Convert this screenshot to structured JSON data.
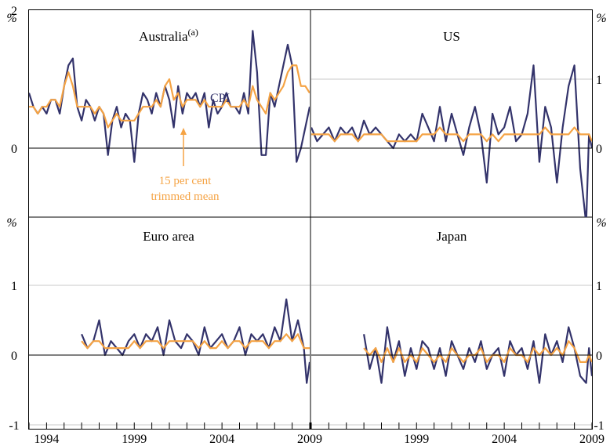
{
  "colors": {
    "cpi": "#33336b",
    "trimmed_mean": "#f5a344",
    "grid": "#c8c8c8",
    "axis": "#000000"
  },
  "chart_data": [
    {
      "type": "line",
      "title": "Australia",
      "title_superscript": "(a)",
      "unit": "%",
      "ylim": [
        -1,
        3
      ],
      "yticks": [
        "2",
        "0"
      ],
      "ytick_values": [
        2,
        0
      ],
      "grid": true,
      "annotations": {
        "cpi": "CPI",
        "trimmed_mean_line1": "15 per cent",
        "trimmed_mean_line2": "trimmed mean"
      },
      "series": [
        {
          "key": "cpi",
          "x": [
            1993.0,
            1993.25,
            1993.5,
            1993.75,
            1994.0,
            1994.25,
            1994.5,
            1994.75,
            1995.0,
            1995.25,
            1995.5,
            1995.75,
            1996.0,
            1996.25,
            1996.5,
            1996.75,
            1997.0,
            1997.25,
            1997.5,
            1997.75,
            1998.0,
            1998.25,
            1998.5,
            1998.75,
            1999.0,
            1999.25,
            1999.5,
            1999.75,
            2000.0,
            2000.25,
            2000.5,
            2000.75,
            2001.0,
            2001.25,
            2001.5,
            2001.75,
            2002.0,
            2002.25,
            2002.5,
            2002.75,
            2003.0,
            2003.25,
            2003.5,
            2003.75,
            2004.0,
            2004.25,
            2004.5,
            2004.75,
            2005.0,
            2005.25,
            2005.5,
            2005.75,
            2006.0,
            2006.25,
            2006.5,
            2006.75,
            2007.0,
            2007.25,
            2007.5,
            2007.75,
            2008.0,
            2008.25,
            2008.5,
            2008.75,
            2009.0
          ],
          "values": [
            0.8,
            0.6,
            0.5,
            0.6,
            0.5,
            0.7,
            0.7,
            0.5,
            0.9,
            1.2,
            1.3,
            0.6,
            0.4,
            0.7,
            0.6,
            0.4,
            0.6,
            0.5,
            -0.1,
            0.4,
            0.6,
            0.3,
            0.5,
            0.4,
            -0.2,
            0.5,
            0.8,
            0.7,
            0.5,
            0.8,
            0.6,
            0.9,
            0.7,
            0.3,
            0.9,
            0.5,
            0.8,
            0.7,
            0.8,
            0.6,
            0.8,
            0.3,
            0.7,
            0.5,
            0.6,
            0.8,
            0.6,
            0.6,
            0.5,
            0.8,
            0.5,
            1.7,
            1.1,
            -0.1,
            -0.1,
            0.8,
            0.6,
            0.9,
            1.2,
            1.5,
            1.2,
            -0.2,
            0.0,
            0.3,
            0.6
          ]
        },
        {
          "key": "trimmed_mean",
          "x": [
            1993.0,
            1993.25,
            1993.5,
            1993.75,
            1994.0,
            1994.25,
            1994.5,
            1994.75,
            1995.0,
            1995.25,
            1995.5,
            1995.75,
            1996.0,
            1996.25,
            1996.5,
            1996.75,
            1997.0,
            1997.25,
            1997.5,
            1997.75,
            1998.0,
            1998.25,
            1998.5,
            1998.75,
            1999.0,
            1999.25,
            1999.5,
            1999.75,
            2000.0,
            2000.25,
            2000.5,
            2000.75,
            2001.0,
            2001.25,
            2001.5,
            2001.75,
            2002.0,
            2002.25,
            2002.5,
            2002.75,
            2003.0,
            2003.25,
            2003.5,
            2003.75,
            2004.0,
            2004.25,
            2004.5,
            2004.75,
            2005.0,
            2005.25,
            2005.5,
            2005.75,
            2006.0,
            2006.25,
            2006.5,
            2006.75,
            2007.0,
            2007.25,
            2007.5,
            2007.75,
            2008.0,
            2008.25,
            2008.5,
            2008.75,
            2009.0
          ],
          "values": [
            0.6,
            0.6,
            0.5,
            0.6,
            0.6,
            0.7,
            0.7,
            0.6,
            0.9,
            1.1,
            0.9,
            0.6,
            0.6,
            0.6,
            0.6,
            0.5,
            0.6,
            0.5,
            0.3,
            0.4,
            0.5,
            0.4,
            0.4,
            0.4,
            0.4,
            0.5,
            0.6,
            0.6,
            0.6,
            0.7,
            0.6,
            0.9,
            1.0,
            0.7,
            0.8,
            0.6,
            0.7,
            0.7,
            0.7,
            0.6,
            0.7,
            0.6,
            0.6,
            0.6,
            0.6,
            0.7,
            0.6,
            0.6,
            0.6,
            0.7,
            0.6,
            0.9,
            0.7,
            0.6,
            0.5,
            0.8,
            0.7,
            0.8,
            0.9,
            1.1,
            1.2,
            1.2,
            0.9,
            0.9,
            0.8
          ]
        }
      ]
    },
    {
      "type": "line",
      "title": "US",
      "unit": "%",
      "ylim": [
        -1,
        1.5
      ],
      "yticks": [
        "1",
        "0"
      ],
      "ytick_values": [
        1,
        0
      ],
      "grid": true,
      "series": [
        {
          "key": "cpi",
          "x": [
            1993.0,
            1993.33,
            1993.67,
            1994.0,
            1994.33,
            1994.67,
            1995.0,
            1995.33,
            1995.67,
            1996.0,
            1996.33,
            1996.67,
            1997.0,
            1997.33,
            1997.67,
            1998.0,
            1998.33,
            1998.67,
            1999.0,
            1999.33,
            1999.67,
            2000.0,
            2000.33,
            2000.67,
            2001.0,
            2001.33,
            2001.67,
            2002.0,
            2002.33,
            2002.67,
            2003.0,
            2003.33,
            2003.67,
            2004.0,
            2004.33,
            2004.67,
            2005.0,
            2005.33,
            2005.67,
            2006.0,
            2006.33,
            2006.67,
            2007.0,
            2007.33,
            2007.67,
            2008.0,
            2008.33,
            2008.67,
            2008.83,
            2009.0
          ],
          "values": [
            0.3,
            0.1,
            0.2,
            0.3,
            0.1,
            0.3,
            0.2,
            0.3,
            0.1,
            0.4,
            0.2,
            0.3,
            0.2,
            0.1,
            0.0,
            0.2,
            0.1,
            0.2,
            0.1,
            0.5,
            0.3,
            0.1,
            0.6,
            0.1,
            0.5,
            0.2,
            -0.1,
            0.3,
            0.6,
            0.2,
            -0.5,
            0.5,
            0.2,
            0.3,
            0.6,
            0.1,
            0.2,
            0.5,
            1.2,
            -0.2,
            0.6,
            0.3,
            -0.5,
            0.3,
            0.9,
            1.2,
            -0.3,
            -1.1,
            0.2,
            0.0
          ]
        },
        {
          "key": "trimmed_mean",
          "x": [
            1993.0,
            1993.33,
            1993.67,
            1994.0,
            1994.33,
            1994.67,
            1995.0,
            1995.33,
            1995.67,
            1996.0,
            1996.33,
            1996.67,
            1997.0,
            1997.33,
            1997.67,
            1998.0,
            1998.33,
            1998.67,
            1999.0,
            1999.33,
            1999.67,
            2000.0,
            2000.33,
            2000.67,
            2001.0,
            2001.33,
            2001.67,
            2002.0,
            2002.33,
            2002.67,
            2003.0,
            2003.33,
            2003.67,
            2004.0,
            2004.33,
            2004.67,
            2005.0,
            2005.33,
            2005.67,
            2006.0,
            2006.33,
            2006.67,
            2007.0,
            2007.33,
            2007.67,
            2008.0,
            2008.33,
            2008.67,
            2008.83,
            2009.0
          ],
          "values": [
            0.2,
            0.2,
            0.2,
            0.2,
            0.1,
            0.2,
            0.2,
            0.2,
            0.1,
            0.2,
            0.2,
            0.2,
            0.2,
            0.1,
            0.1,
            0.1,
            0.1,
            0.1,
            0.1,
            0.2,
            0.2,
            0.2,
            0.3,
            0.2,
            0.2,
            0.2,
            0.1,
            0.2,
            0.2,
            0.2,
            0.1,
            0.2,
            0.1,
            0.2,
            0.2,
            0.2,
            0.2,
            0.2,
            0.2,
            0.2,
            0.3,
            0.2,
            0.2,
            0.2,
            0.2,
            0.3,
            0.2,
            0.2,
            0.2,
            0.1
          ]
        }
      ]
    },
    {
      "type": "line",
      "title": "Euro area",
      "unit": "%",
      "ylim": [
        -1,
        2
      ],
      "yticks": [
        "1",
        "0",
        "-1"
      ],
      "ytick_values": [
        1,
        0,
        -1
      ],
      "grid": true,
      "series": [
        {
          "key": "cpi",
          "x": [
            1996.0,
            1996.33,
            1996.67,
            1997.0,
            1997.33,
            1997.67,
            1998.0,
            1998.33,
            1998.67,
            1999.0,
            1999.33,
            1999.67,
            2000.0,
            2000.33,
            2000.67,
            2001.0,
            2001.33,
            2001.67,
            2002.0,
            2002.33,
            2002.67,
            2003.0,
            2003.33,
            2003.67,
            2004.0,
            2004.33,
            2004.67,
            2005.0,
            2005.33,
            2005.67,
            2006.0,
            2006.33,
            2006.67,
            2007.0,
            2007.33,
            2007.67,
            2008.0,
            2008.33,
            2008.67,
            2008.83,
            2009.0
          ],
          "values": [
            0.3,
            0.1,
            0.2,
            0.5,
            0.0,
            0.2,
            0.1,
            0.0,
            0.2,
            0.3,
            0.1,
            0.3,
            0.2,
            0.4,
            0.0,
            0.5,
            0.2,
            0.1,
            0.3,
            0.2,
            0.0,
            0.4,
            0.1,
            0.2,
            0.3,
            0.1,
            0.2,
            0.4,
            0.0,
            0.3,
            0.2,
            0.3,
            0.1,
            0.4,
            0.2,
            0.8,
            0.2,
            0.5,
            0.1,
            -0.4,
            -0.1
          ]
        },
        {
          "key": "trimmed_mean",
          "x": [
            1996.0,
            1996.33,
            1996.67,
            1997.0,
            1997.33,
            1997.67,
            1998.0,
            1998.33,
            1998.67,
            1999.0,
            1999.33,
            1999.67,
            2000.0,
            2000.33,
            2000.67,
            2001.0,
            2001.33,
            2001.67,
            2002.0,
            2002.33,
            2002.67,
            2003.0,
            2003.33,
            2003.67,
            2004.0,
            2004.33,
            2004.67,
            2005.0,
            2005.33,
            2005.67,
            2006.0,
            2006.33,
            2006.67,
            2007.0,
            2007.33,
            2007.67,
            2008.0,
            2008.33,
            2008.67,
            2008.83,
            2009.0
          ],
          "values": [
            0.2,
            0.1,
            0.2,
            0.2,
            0.1,
            0.1,
            0.1,
            0.1,
            0.1,
            0.2,
            0.1,
            0.2,
            0.2,
            0.2,
            0.1,
            0.2,
            0.2,
            0.2,
            0.2,
            0.2,
            0.1,
            0.2,
            0.1,
            0.1,
            0.2,
            0.1,
            0.2,
            0.2,
            0.1,
            0.2,
            0.2,
            0.2,
            0.1,
            0.2,
            0.2,
            0.3,
            0.2,
            0.3,
            0.1,
            0.1,
            0.1
          ]
        }
      ]
    },
    {
      "type": "line",
      "title": "Japan",
      "unit": "%",
      "ylim": [
        -1,
        2
      ],
      "yticks": [
        "1",
        "0",
        "-1"
      ],
      "ytick_values": [
        1,
        0,
        -1
      ],
      "grid": true,
      "series": [
        {
          "key": "cpi",
          "x": [
            1996.0,
            1996.33,
            1996.67,
            1997.0,
            1997.33,
            1997.67,
            1998.0,
            1998.33,
            1998.67,
            1999.0,
            1999.33,
            1999.67,
            2000.0,
            2000.33,
            2000.67,
            2001.0,
            2001.33,
            2001.67,
            2002.0,
            2002.33,
            2002.67,
            2003.0,
            2003.33,
            2003.67,
            2004.0,
            2004.33,
            2004.67,
            2005.0,
            2005.33,
            2005.67,
            2006.0,
            2006.33,
            2006.67,
            2007.0,
            2007.33,
            2007.67,
            2008.0,
            2008.33,
            2008.67,
            2008.83,
            2009.0
          ],
          "values": [
            0.3,
            -0.2,
            0.1,
            -0.4,
            0.4,
            -0.1,
            0.2,
            -0.3,
            0.1,
            -0.2,
            0.2,
            0.1,
            -0.2,
            0.1,
            -0.3,
            0.2,
            0.0,
            -0.2,
            0.1,
            -0.1,
            0.2,
            -0.2,
            0.0,
            0.1,
            -0.3,
            0.2,
            0.0,
            0.1,
            -0.2,
            0.2,
            -0.4,
            0.3,
            0.0,
            0.2,
            -0.1,
            0.4,
            0.1,
            -0.3,
            -0.4,
            0.1,
            -0.3
          ]
        },
        {
          "key": "trimmed_mean",
          "x": [
            1996.0,
            1996.33,
            1996.67,
            1997.0,
            1997.33,
            1997.67,
            1998.0,
            1998.33,
            1998.67,
            1999.0,
            1999.33,
            1999.67,
            2000.0,
            2000.33,
            2000.67,
            2001.0,
            2001.33,
            2001.67,
            2002.0,
            2002.33,
            2002.67,
            2003.0,
            2003.33,
            2003.67,
            2004.0,
            2004.33,
            2004.67,
            2005.0,
            2005.33,
            2005.67,
            2006.0,
            2006.33,
            2006.67,
            2007.0,
            2007.33,
            2007.67,
            2008.0,
            2008.33,
            2008.67,
            2008.83,
            2009.0
          ],
          "values": [
            0.1,
            0.0,
            0.1,
            -0.1,
            0.1,
            -0.1,
            0.1,
            -0.1,
            0.0,
            -0.1,
            0.1,
            0.0,
            -0.1,
            0.0,
            -0.1,
            0.1,
            0.0,
            -0.1,
            0.0,
            0.0,
            0.1,
            -0.1,
            0.0,
            0.0,
            -0.1,
            0.1,
            0.0,
            0.0,
            -0.1,
            0.1,
            0.0,
            0.1,
            0.0,
            0.1,
            0.0,
            0.2,
            0.1,
            -0.1,
            -0.1,
            0.0,
            -0.1
          ]
        }
      ]
    }
  ],
  "xaxis": {
    "xlim": [
      1993,
      2009
    ],
    "ticks_left": [
      "1994",
      "1999",
      "2004",
      "2009"
    ],
    "ticks_right": [
      "1999",
      "2004",
      "2009"
    ],
    "tick_values_left": [
      1994,
      1999,
      2004,
      2009
    ],
    "tick_values_right": [
      1999,
      2004,
      2009
    ]
  }
}
